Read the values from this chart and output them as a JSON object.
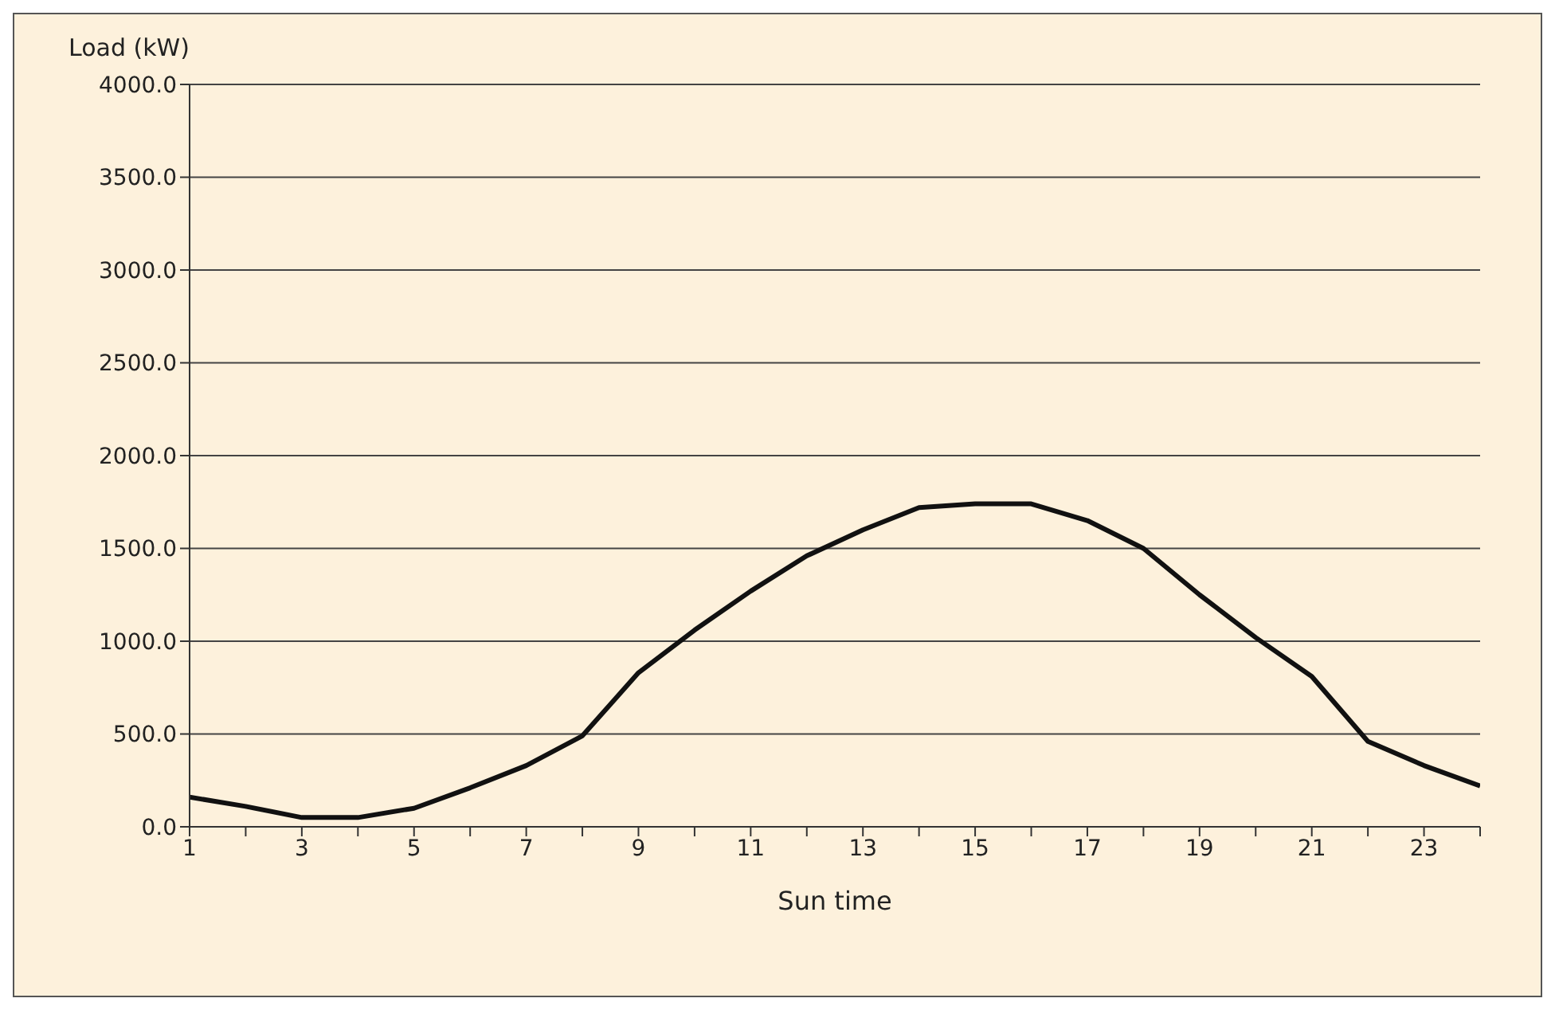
{
  "chart_data": {
    "type": "line",
    "xlabel": "Sun time",
    "ylabel": "Load (kW)",
    "x": [
      1,
      2,
      3,
      4,
      5,
      6,
      7,
      8,
      9,
      10,
      11,
      12,
      13,
      14,
      15,
      16,
      17,
      18,
      19,
      20,
      21,
      22,
      23,
      24
    ],
    "series": [
      {
        "color": "#111111",
        "values": [
          160,
          110,
          50,
          50,
          100,
          210,
          330,
          490,
          830,
          1060,
          1270,
          1460,
          1600,
          1720,
          1740,
          1740,
          1650,
          1500,
          1250,
          1020,
          810,
          460,
          330,
          220
        ]
      }
    ],
    "xlim": [
      1,
      24
    ],
    "xticks": [
      1,
      {
        "value": 2,
        "label": null
      },
      3,
      {
        "value": 4,
        "label": null
      },
      5,
      {
        "value": 6,
        "label": null
      },
      7,
      {
        "value": 8,
        "label": null
      },
      9,
      {
        "value": 10,
        "label": null
      },
      11,
      {
        "value": 12,
        "label": null
      },
      13,
      {
        "value": 14,
        "label": null
      },
      15,
      {
        "value": 16,
        "label": null
      },
      17,
      {
        "value": 18,
        "label": null
      },
      19,
      {
        "value": 20,
        "label": null
      },
      21,
      {
        "value": 22,
        "label": null
      },
      23,
      {
        "value": 24,
        "label": null
      }
    ],
    "ylim": [
      0,
      4000
    ],
    "yticks": [
      {
        "value": 0,
        "label": "0.0"
      },
      {
        "value": 500,
        "label": "500.0"
      },
      {
        "value": 1000,
        "label": "1000.0"
      },
      {
        "value": 1500,
        "label": "1500.0"
      },
      {
        "value": 2000,
        "label": "2000.0"
      },
      {
        "value": 2500,
        "label": "2500.0"
      },
      {
        "value": 3000,
        "label": "3000.0"
      },
      {
        "value": 3500,
        "label": "3500.0"
      },
      {
        "value": 4000,
        "label": "4000.0"
      }
    ],
    "grid": "y",
    "marker": "none",
    "line_style": "solid"
  }
}
